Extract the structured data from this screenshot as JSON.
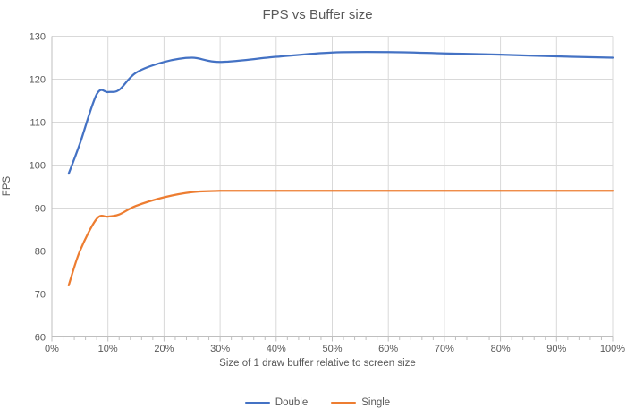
{
  "chart_data": {
    "type": "line",
    "title": "FPS vs Buffer size",
    "xlabel": "Size of 1 draw buffer relative to screen size",
    "ylabel": "FPS",
    "x": [
      3,
      5,
      8,
      10,
      12,
      15,
      20,
      25,
      30,
      40,
      50,
      60,
      70,
      80,
      90,
      100
    ],
    "series": [
      {
        "name": "Double",
        "color": "#4472c4",
        "values": [
          98,
          105,
          116.5,
          117,
          117.5,
          121.5,
          124,
          125,
          124,
          125.2,
          126.2,
          126.3,
          126,
          125.7,
          125.3,
          125
        ]
      },
      {
        "name": "Single",
        "color": "#ed7d31",
        "values": [
          72,
          80,
          87.5,
          88,
          88.5,
          90.5,
          92.5,
          93.7,
          94,
          94,
          94,
          94,
          94,
          94,
          94,
          94
        ]
      }
    ],
    "xlim": [
      0,
      100
    ],
    "ylim": [
      60,
      130
    ],
    "x_ticks": [
      "0%",
      "10%",
      "20%",
      "30%",
      "40%",
      "50%",
      "60%",
      "70%",
      "80%",
      "90%",
      "100%"
    ],
    "x_tick_values": [
      0,
      10,
      20,
      30,
      40,
      50,
      60,
      70,
      80,
      90,
      100
    ],
    "x_minor_tick_step": 2,
    "y_ticks": [
      "60",
      "70",
      "80",
      "90",
      "100",
      "110",
      "120",
      "130"
    ],
    "y_tick_values": [
      60,
      70,
      80,
      90,
      100,
      110,
      120,
      130
    ],
    "grid": true,
    "smooth": true,
    "legend_position": "bottom"
  },
  "colors": {
    "gridline": "#d9d9d9",
    "axis_line": "#bfbfbf",
    "tick_mark": "#bfbfbf",
    "label_text": "#595959"
  }
}
